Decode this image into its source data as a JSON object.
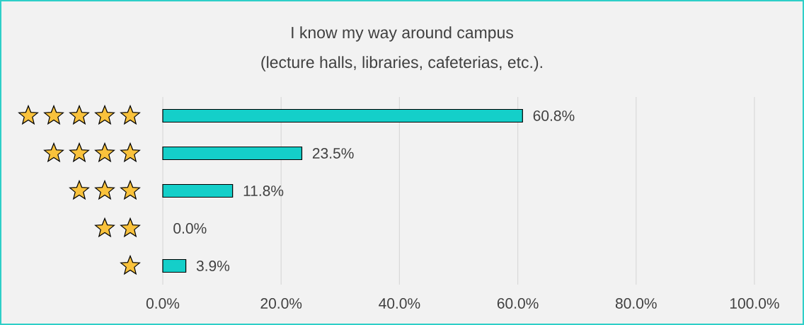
{
  "chart_data": {
    "type": "bar",
    "orientation": "horizontal",
    "title": "I know my way around campus",
    "subtitle": "(lecture halls, libraries, cafeterias, etc.).",
    "categories": [
      null,
      null,
      null,
      null,
      null
    ],
    "values": [
      60.8,
      23.5,
      11.8,
      0.0,
      3.9
    ],
    "value_labels": [
      "60.8%",
      "23.5%",
      "11.8%",
      "0.0%",
      "3.9%"
    ],
    "color": "#14cfc9",
    "xlim": [
      0,
      100
    ],
    "xticks": [
      {
        "value": 0,
        "label": "0.0%"
      },
      {
        "value": 20,
        "label": "20.0%"
      },
      {
        "value": 40,
        "label": "40.0%"
      },
      {
        "value": 60,
        "label": "60.0%"
      },
      {
        "value": 80,
        "label": "80.0%"
      },
      {
        "value": 100,
        "label": "100.0%"
      }
    ],
    "grid": "x"
  }
}
